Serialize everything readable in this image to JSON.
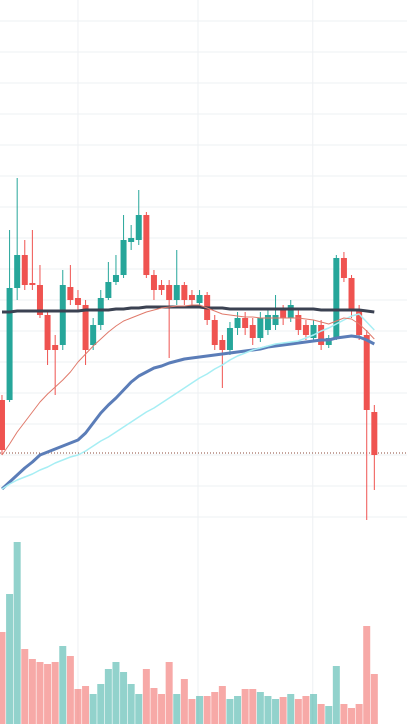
{
  "chart_data": {
    "type": "candlestick",
    "xlim": [
      -0.26,
      53.3
    ],
    "ylim": [
      200,
      724
    ],
    "volume_ylim": [
      0,
      190
    ],
    "xticks": [
      10,
      25.8,
      40.9
    ],
    "yticks": [
      207,
      238,
      269,
      300,
      331,
      362,
      393,
      424,
      455,
      486,
      517,
      548,
      579,
      610,
      641,
      672,
      703
    ],
    "grid": true,
    "up_color": "#26a69a",
    "down_color": "#ef5350",
    "price_line": 271,
    "price_line_color": "#8b4a3a",
    "open": [
      324,
      324,
      436,
      469,
      441,
      439,
      409,
      379,
      379,
      437,
      426,
      419,
      379,
      399,
      426,
      442,
      449,
      482,
      484,
      509,
      449,
      439,
      439,
      424,
      439,
      429,
      421,
      429,
      404,
      384,
      374,
      396,
      406,
      399,
      386,
      394,
      399,
      414,
      406,
      409,
      399,
      386,
      399,
      379,
      386,
      466,
      446,
      414,
      389,
      312
    ],
    "close": [
      274,
      436,
      469,
      439,
      439,
      409,
      374,
      374,
      439,
      424,
      419,
      374,
      399,
      426,
      442,
      449,
      484,
      486,
      509,
      449,
      434,
      434,
      424,
      439,
      424,
      424,
      429,
      404,
      379,
      374,
      396,
      406,
      396,
      386,
      406,
      409,
      409,
      406,
      419,
      394,
      389,
      399,
      379,
      386,
      466,
      446,
      414,
      389,
      314,
      269
    ],
    "high": [
      329,
      494,
      546,
      484,
      494,
      459,
      414,
      389,
      454,
      459,
      434,
      424,
      406,
      434,
      462,
      469,
      509,
      499,
      534,
      512,
      454,
      444,
      444,
      474,
      442,
      434,
      434,
      432,
      409,
      389,
      402,
      412,
      412,
      406,
      412,
      416,
      429,
      419,
      424,
      414,
      404,
      404,
      404,
      389,
      469,
      472,
      449,
      419,
      394,
      319
    ],
    "low": [
      269,
      322,
      424,
      434,
      434,
      406,
      359,
      329,
      374,
      419,
      414,
      359,
      374,
      394,
      424,
      439,
      446,
      474,
      479,
      446,
      424,
      429,
      366,
      419,
      419,
      419,
      416,
      399,
      374,
      336,
      369,
      389,
      389,
      379,
      382,
      389,
      394,
      399,
      402,
      389,
      384,
      382,
      374,
      376,
      384,
      442,
      406,
      384,
      204,
      234
    ],
    "volume": [
      92,
      130,
      182,
      75,
      65,
      62,
      60,
      62,
      78,
      68,
      35,
      38,
      30,
      40,
      55,
      62,
      52,
      40,
      30,
      55,
      36,
      30,
      62,
      30,
      45,
      25,
      28,
      28,
      32,
      38,
      25,
      28,
      35,
      35,
      32,
      28,
      25,
      27,
      30,
      25,
      28,
      30,
      20,
      18,
      58,
      20,
      16,
      20,
      98,
      50
    ],
    "series": [
      {
        "color": "#3b4252",
        "width": 3,
        "values": [
          412,
          412,
          413,
          413,
          413,
          413,
          413,
          413,
          413,
          413,
          413,
          414,
          414,
          414,
          414,
          415,
          415,
          416,
          416,
          417,
          417,
          417,
          417,
          417,
          417,
          417,
          417,
          416,
          416,
          416,
          415,
          415,
          415,
          415,
          415,
          415,
          415,
          415,
          415,
          415,
          415,
          415,
          414,
          414,
          414,
          414,
          414,
          414,
          413,
          412
        ]
      },
      {
        "color": "#5b7db8",
        "width": 3,
        "values": [
          235,
          242,
          249,
          256,
          262,
          269,
          272,
          275,
          278,
          281,
          284,
          291,
          301,
          311,
          319,
          326,
          334,
          342,
          348,
          352,
          356,
          358,
          361,
          363,
          365,
          366,
          367,
          368,
          369,
          370,
          371,
          372,
          373,
          374,
          375,
          377,
          378,
          379,
          380,
          381,
          382,
          383,
          384,
          384,
          386,
          387,
          388,
          387,
          384,
          380
        ]
      },
      {
        "color": "#a6eef4",
        "width": 1.5,
        "values": [
          235,
          240,
          244,
          247,
          250,
          254,
          257,
          261,
          264,
          267,
          269,
          273,
          278,
          283,
          287,
          292,
          297,
          302,
          307,
          312,
          316,
          321,
          326,
          331,
          336,
          341,
          346,
          350,
          355,
          359,
          364,
          368,
          371,
          374,
          376,
          378,
          380,
          381,
          382,
          383,
          386,
          389,
          393,
          396,
          400,
          404,
          408,
          410,
          402,
          394
        ]
      },
      {
        "color": "#e07a6b",
        "width": 1,
        "values": [
          269,
          280,
          292,
          302,
          312,
          322,
          330,
          337,
          344,
          352,
          362,
          370,
          378,
          385,
          392,
          398,
          403,
          406,
          409,
          412,
          414,
          416,
          417,
          418,
          418,
          419,
          419,
          416,
          413,
          410,
          409,
          408,
          407,
          407,
          406,
          406,
          406,
          406,
          406,
          406,
          405,
          404,
          402,
          400,
          403,
          406,
          405,
          400,
          393,
          385
        ]
      }
    ]
  }
}
